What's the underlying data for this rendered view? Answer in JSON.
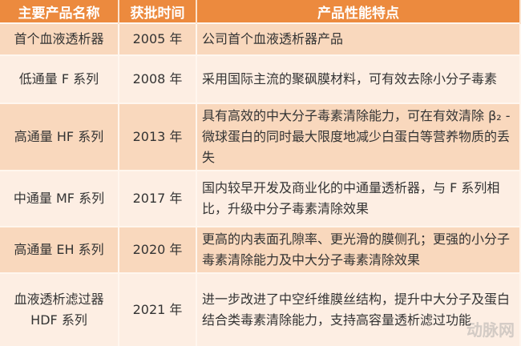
{
  "headers": [
    "主要产品名称",
    "获批时间",
    "产品性能特点"
  ],
  "rows": [
    {
      "name": "首个血液透析器",
      "date": "2005 年",
      "desc": "公司首个血液透析器产品"
    },
    {
      "name": "低通量 F 系列",
      "date": "2008 年",
      "desc": "采用国际主流的聚砜膜材料，可有效去除小分子毒素"
    },
    {
      "name": "高通量 HF 系列",
      "date": "2013 年",
      "desc": "具有高效的中大分子毒素清除能力，可在有效清除 β₂ - 微球蛋白的同时最大限度地减少白蛋白等营养物质的丢失"
    },
    {
      "name": "中通量 MF 系列",
      "date": "2017 年",
      "desc": "国内较早开发及商业化的中通量透析器，与 F 系列相比，升级中分子毒素清除效果"
    },
    {
      "name": "高通量 EH 系列",
      "date": "2020 年",
      "desc": "更高的内表面孔隙率、更光滑的膜侧孔；更强的小分子毒素清除能力及中大分子毒素清除效果"
    },
    {
      "name": "血液透析滤过器 HDF 系列",
      "date": "2021 年",
      "desc": "进一步改进了中空纤维膜丝结构，提升中大分子及蛋白结合类毒素清除能力，支持高容量透析滤过功能"
    }
  ],
  "watermark": "动脉网"
}
